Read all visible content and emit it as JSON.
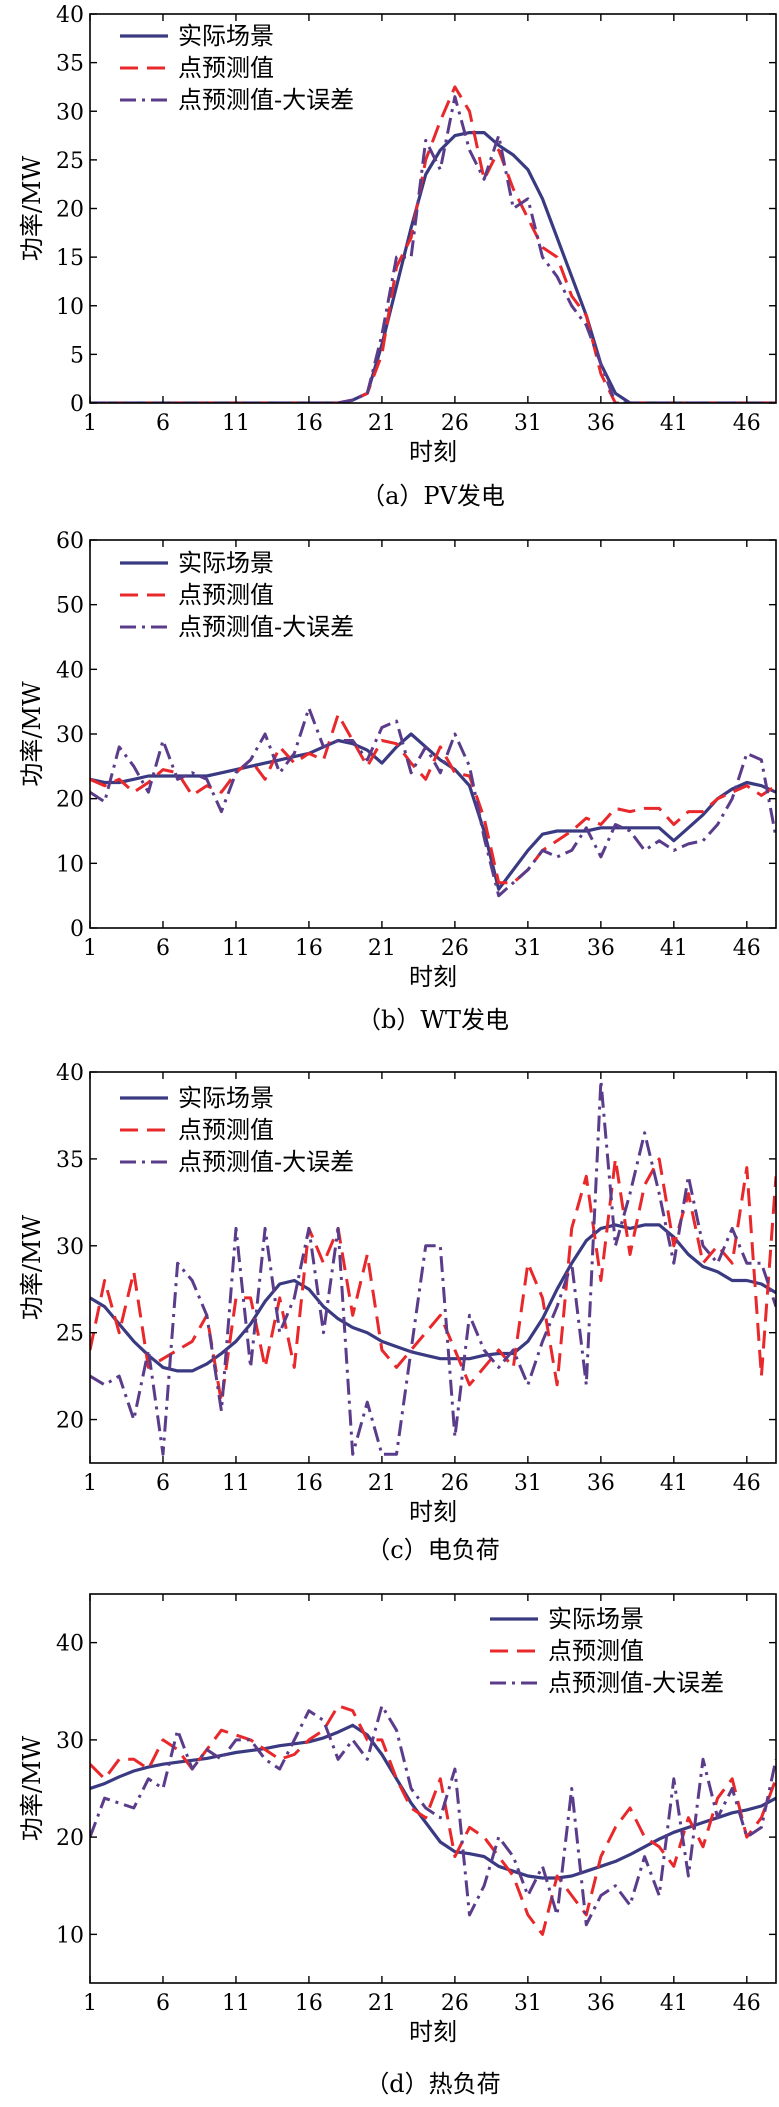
{
  "colors": {
    "actual": "#3a3a82",
    "forecast": "#e8282b",
    "forecast_err": "#5a3c8a",
    "axis": "#000000"
  },
  "chart_data": [
    {
      "type": "line",
      "caption": "（a）PV发电",
      "xlabel": "时刻",
      "ylabel": "功率/MW",
      "xlim": [
        1,
        48
      ],
      "ylim": [
        0,
        40
      ],
      "xticks": [
        "1",
        "6",
        "11",
        "16",
        "21",
        "26",
        "31",
        "36",
        "41",
        "46"
      ],
      "yticks": [
        "0",
        "5",
        "10",
        "15",
        "20",
        "25",
        "30",
        "35",
        "40"
      ],
      "legend_position": "top-left",
      "x": [
        1,
        2,
        3,
        4,
        5,
        6,
        7,
        8,
        9,
        10,
        11,
        12,
        13,
        14,
        15,
        16,
        17,
        18,
        19,
        20,
        21,
        22,
        23,
        24,
        25,
        26,
        27,
        28,
        29,
        30,
        31,
        32,
        33,
        34,
        35,
        36,
        37,
        38,
        39,
        40,
        41,
        42,
        43,
        44,
        45,
        46,
        47,
        48
      ],
      "series": [
        {
          "name": "实际场景",
          "style": "solid",
          "values": [
            0,
            0,
            0,
            0,
            0,
            0,
            0,
            0,
            0,
            0,
            0,
            0,
            0,
            0,
            0,
            0,
            0,
            0,
            0.3,
            1,
            6,
            12,
            18,
            23.5,
            26,
            27.5,
            27.8,
            27.8,
            26.5,
            25.5,
            24,
            21,
            17,
            13,
            9,
            4,
            1,
            0,
            0,
            0,
            0,
            0,
            0,
            0,
            0,
            0,
            0,
            0
          ]
        },
        {
          "name": "点预测值",
          "style": "dash",
          "values": [
            0,
            0,
            0,
            0,
            0,
            0,
            0,
            0,
            0,
            0,
            0,
            0,
            0,
            0,
            0,
            0,
            0,
            0,
            0.3,
            1,
            5,
            14,
            17,
            25,
            29,
            32.5,
            30,
            23,
            26,
            22,
            19,
            16,
            15,
            11,
            9,
            3,
            0,
            0,
            0,
            0,
            0,
            0,
            0,
            0,
            0,
            0,
            0,
            0
          ]
        },
        {
          "name": "点预测值-大误差",
          "style": "dashdot",
          "values": [
            0,
            0,
            0,
            0,
            0,
            0,
            0,
            0,
            0,
            0,
            0,
            0,
            0,
            0,
            0,
            0,
            0,
            0,
            0.3,
            1,
            7,
            15,
            15,
            27,
            24,
            31.5,
            26,
            23,
            27.5,
            20,
            21,
            15,
            13,
            10,
            8,
            4,
            0,
            0,
            0,
            0,
            0,
            0,
            0,
            0,
            0,
            0,
            0,
            0
          ]
        }
      ]
    },
    {
      "type": "line",
      "caption": "（b）WT发电",
      "xlabel": "时刻",
      "ylabel": "功率/MW",
      "xlim": [
        1,
        48
      ],
      "ylim": [
        0,
        60
      ],
      "xticks": [
        "1",
        "6",
        "11",
        "16",
        "21",
        "26",
        "31",
        "36",
        "41",
        "46"
      ],
      "yticks": [
        "0",
        "10",
        "20",
        "30",
        "40",
        "50",
        "60"
      ],
      "legend_position": "top-left",
      "x": [
        1,
        2,
        3,
        4,
        5,
        6,
        7,
        8,
        9,
        10,
        11,
        12,
        13,
        14,
        15,
        16,
        17,
        18,
        19,
        20,
        21,
        22,
        23,
        24,
        25,
        26,
        27,
        28,
        29,
        30,
        31,
        32,
        33,
        34,
        35,
        36,
        37,
        38,
        39,
        40,
        41,
        42,
        43,
        44,
        45,
        46,
        47,
        48
      ],
      "series": [
        {
          "name": "实际场景",
          "style": "solid",
          "values": [
            23,
            22.5,
            22.5,
            23,
            23.5,
            23.5,
            23.5,
            23.5,
            23.5,
            24,
            24.5,
            25,
            25.5,
            26,
            26.5,
            27,
            28,
            29,
            28.5,
            27.5,
            25.5,
            28,
            30,
            28,
            26,
            24.5,
            22,
            15,
            6,
            9,
            12,
            14.5,
            15,
            15,
            15,
            15.5,
            15.5,
            15.5,
            15.5,
            15.5,
            13.5,
            15.5,
            17.5,
            20,
            21.5,
            22.5,
            22,
            21
          ]
        },
        {
          "name": "点预测值",
          "style": "dash",
          "values": [
            23,
            22,
            23,
            21,
            22.5,
            24.5,
            24,
            20.5,
            22,
            21,
            24,
            26,
            23,
            28,
            25.5,
            27,
            26,
            33,
            29,
            25,
            29,
            28.5,
            25.5,
            23,
            28,
            24,
            23.5,
            17,
            7,
            7,
            9,
            12,
            13.5,
            15,
            17,
            16,
            18.5,
            18,
            18.5,
            18.5,
            16,
            18,
            18,
            20,
            21,
            22,
            20.5,
            22
          ]
        },
        {
          "name": "点预测值-大误差",
          "style": "dashdot",
          "values": [
            21,
            19.5,
            28,
            25,
            21,
            29,
            23,
            24,
            23,
            18,
            24,
            26,
            30,
            24,
            27,
            34,
            28,
            29,
            29,
            26,
            31,
            32,
            24,
            28,
            24,
            30,
            25,
            14,
            5,
            7,
            9,
            12,
            11,
            12,
            15.5,
            11,
            16,
            15,
            12,
            13.5,
            12,
            13,
            13.5,
            16,
            20,
            27,
            26,
            14
          ]
        }
      ]
    },
    {
      "type": "line",
      "caption": "（c）电负荷",
      "xlabel": "时刻",
      "ylabel": "功率/MW",
      "xlim": [
        1,
        48
      ],
      "ylim": [
        17.5,
        40
      ],
      "xticks": [
        "1",
        "6",
        "11",
        "16",
        "21",
        "26",
        "31",
        "36",
        "41",
        "46"
      ],
      "yticks": [
        "20",
        "25",
        "30",
        "35",
        "40"
      ],
      "legend_position": "top-left",
      "x": [
        1,
        2,
        3,
        4,
        5,
        6,
        7,
        8,
        9,
        10,
        11,
        12,
        13,
        14,
        15,
        16,
        17,
        18,
        19,
        20,
        21,
        22,
        23,
        24,
        25,
        26,
        27,
        28,
        29,
        30,
        31,
        32,
        33,
        34,
        35,
        36,
        37,
        38,
        39,
        40,
        41,
        42,
        43,
        44,
        45,
        46,
        47,
        48
      ],
      "series": [
        {
          "name": "实际场景",
          "style": "solid",
          "values": [
            27,
            26.5,
            25.5,
            24.5,
            23.7,
            23,
            22.8,
            22.8,
            23.2,
            23.8,
            24.5,
            25.5,
            26.8,
            27.8,
            28,
            27.5,
            26.5,
            25.8,
            25.3,
            25,
            24.5,
            24.2,
            23.9,
            23.7,
            23.5,
            23.5,
            23.5,
            23.7,
            23.8,
            23.8,
            24.5,
            25.8,
            27.5,
            29,
            30.3,
            31,
            31.2,
            31,
            31.2,
            31.2,
            30.5,
            29.5,
            28.8,
            28.5,
            28,
            28,
            27.8,
            27.3
          ]
        },
        {
          "name": "点预测值",
          "style": "dash",
          "values": [
            24,
            28,
            25,
            28.5,
            23,
            23.5,
            24,
            24.5,
            26,
            21,
            27,
            27,
            23,
            27,
            23,
            31,
            29,
            31,
            26,
            29.5,
            24,
            23,
            24,
            25,
            26,
            24,
            22,
            23,
            24,
            23,
            29,
            27,
            22,
            31,
            34,
            28,
            35,
            29.5,
            33.5,
            35,
            30,
            33,
            29,
            30,
            29,
            34.5,
            22.5,
            34
          ]
        },
        {
          "name": "点预测值-大误差",
          "style": "dashdot",
          "values": [
            22.5,
            22,
            22.5,
            20,
            24,
            18,
            29,
            28,
            26,
            20.5,
            31,
            23,
            31,
            25,
            27,
            31,
            25,
            31,
            18,
            21,
            18,
            18,
            24,
            30,
            30,
            19,
            26,
            24,
            23,
            24,
            22,
            24.5,
            26.5,
            29,
            22,
            39.5,
            30,
            33,
            36.5,
            33,
            29,
            34,
            30,
            29,
            31,
            29,
            29,
            26.5
          ]
        }
      ]
    },
    {
      "type": "line",
      "caption": "（d）热负荷",
      "xlabel": "时刻",
      "ylabel": "功率/MW",
      "xlim": [
        1,
        48
      ],
      "ylim": [
        5,
        45
      ],
      "xticks": [
        "1",
        "6",
        "11",
        "16",
        "21",
        "26",
        "31",
        "36",
        "41",
        "46"
      ],
      "yticks": [
        "10",
        "20",
        "30",
        "40"
      ],
      "legend_position": "top-right",
      "x": [
        1,
        2,
        3,
        4,
        5,
        6,
        7,
        8,
        9,
        10,
        11,
        12,
        13,
        14,
        15,
        16,
        17,
        18,
        19,
        20,
        21,
        22,
        23,
        24,
        25,
        26,
        27,
        28,
        29,
        30,
        31,
        32,
        33,
        34,
        35,
        36,
        37,
        38,
        39,
        40,
        41,
        42,
        43,
        44,
        45,
        46,
        47,
        48
      ],
      "series": [
        {
          "name": "实际场景",
          "style": "solid",
          "values": [
            25,
            25.5,
            26.2,
            26.8,
            27.2,
            27.5,
            27.7,
            27.9,
            28.1,
            28.4,
            28.7,
            28.9,
            29.1,
            29.4,
            29.6,
            29.8,
            30.2,
            30.8,
            31.5,
            30.5,
            28.5,
            26,
            23.5,
            21.5,
            19.5,
            18.5,
            18.3,
            18,
            17,
            16.5,
            16,
            15.8,
            15.8,
            16,
            16.5,
            17,
            17.5,
            18.2,
            19,
            19.8,
            20.5,
            21,
            21.5,
            22,
            22.5,
            22.8,
            23.2,
            24
          ]
        },
        {
          "name": "点预测值",
          "style": "dash",
          "values": [
            27.5,
            26,
            28,
            28,
            27,
            30,
            29,
            27,
            29,
            31,
            30.5,
            30,
            29,
            28,
            28.5,
            30,
            31,
            33.5,
            33,
            30,
            30,
            26,
            23,
            22,
            26,
            18,
            21,
            20,
            18,
            16,
            12,
            10,
            16,
            14,
            12,
            18,
            21,
            23,
            20,
            19,
            17,
            22,
            19,
            24,
            26,
            20,
            22,
            26
          ]
        },
        {
          "name": "点预测值-大误差",
          "style": "dashdot",
          "values": [
            20,
            24,
            23.5,
            23,
            26,
            25,
            31,
            27,
            29,
            28,
            30,
            30,
            28,
            27,
            30,
            33,
            32,
            28,
            30,
            28,
            33.5,
            31,
            25,
            23,
            22,
            27,
            12,
            15,
            20,
            18,
            14,
            17,
            12,
            25,
            11,
            14,
            15,
            13,
            18,
            14,
            26,
            16,
            28,
            22,
            25,
            20,
            21,
            28
          ]
        }
      ]
    }
  ]
}
